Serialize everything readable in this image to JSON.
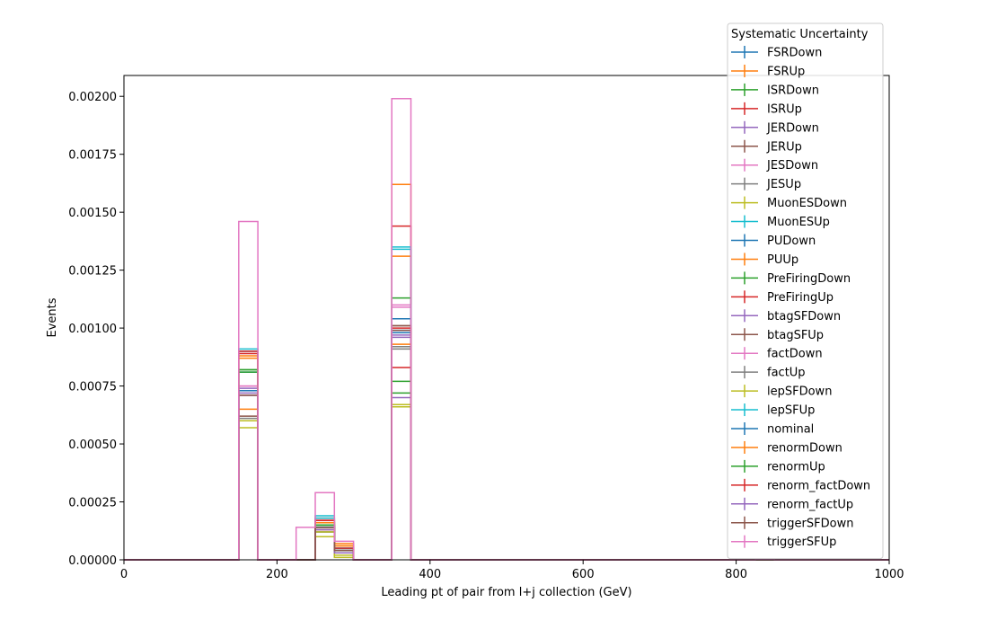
{
  "chart_data": {
    "type": "histogram-step",
    "xlabel": "Leading pt of pair from l+j collection (GeV)",
    "ylabel": "Events",
    "xlim": [
      0,
      1000
    ],
    "ylim": [
      0,
      0.00209
    ],
    "x_ticks": [
      0,
      200,
      400,
      600,
      800,
      1000
    ],
    "y_ticks": [
      0.0,
      0.00025,
      0.0005,
      0.00075,
      0.001,
      0.00125,
      0.0015,
      0.00175,
      0.002
    ],
    "y_tick_labels": [
      "0.00000",
      "0.00025",
      "0.00050",
      "0.00075",
      "0.00100",
      "0.00125",
      "0.00150",
      "0.00175",
      "0.00200"
    ],
    "bin_edges": [
      0,
      150,
      175,
      225,
      250,
      275,
      300,
      350,
      375,
      825,
      850,
      1000
    ],
    "grid": false,
    "legend_title": "Systematic Uncertainty",
    "legend_position": "top-right",
    "series": [
      {
        "name": "FSRDown",
        "color": "#1f77b4",
        "values": [
          0,
          0.00081,
          0,
          0,
          0.00015,
          5e-05,
          0,
          0.00104,
          0,
          0,
          0
        ]
      },
      {
        "name": "FSRUp",
        "color": "#ff7f0e",
        "values": [
          0,
          0.00088,
          0,
          0,
          0.00016,
          6e-05,
          0,
          0.00162,
          0,
          0,
          0
        ]
      },
      {
        "name": "ISRDown",
        "color": "#2ca02c",
        "values": [
          0,
          0.00082,
          0,
          0,
          0.00014,
          4e-05,
          0,
          0.00113,
          0,
          0,
          0
        ]
      },
      {
        "name": "ISRUp",
        "color": "#d62728",
        "values": [
          0,
          0.0009,
          0,
          0,
          0.00018,
          4e-05,
          0,
          0.00083,
          0,
          0,
          0
        ]
      },
      {
        "name": "JERDown",
        "color": "#9467bd",
        "values": [
          0,
          0.00072,
          0,
          0,
          0.00013,
          3e-05,
          0,
          0.0007,
          0,
          0,
          0
        ]
      },
      {
        "name": "JERUp",
        "color": "#8c564b",
        "values": [
          0,
          0.00071,
          0,
          0,
          0.00014,
          4e-05,
          0,
          0.00101,
          0,
          0,
          0
        ]
      },
      {
        "name": "JESDown",
        "color": "#e377c2",
        "values": [
          0,
          0.00075,
          0,
          0,
          0.00017,
          5e-05,
          0,
          0.00109,
          0,
          0,
          0
        ]
      },
      {
        "name": "JESUp",
        "color": "#7f7f7f",
        "values": [
          0,
          0.0006,
          0,
          0,
          0.00012,
          3e-05,
          0,
          0.00091,
          0,
          0,
          0
        ]
      },
      {
        "name": "MuonESDown",
        "color": "#bcbd22",
        "values": [
          0,
          0.00057,
          0,
          0,
          0.0001,
          1e-05,
          0,
          0.00066,
          0,
          0,
          0
        ]
      },
      {
        "name": "MuonESUp",
        "color": "#17becf",
        "values": [
          0,
          0.00091,
          0,
          0,
          0.00019,
          5e-05,
          0,
          0.00134,
          0,
          0,
          0
        ]
      },
      {
        "name": "PUDown",
        "color": "#1f77b4",
        "values": [
          0,
          0.00073,
          0,
          0,
          0.00015,
          4e-05,
          0,
          0.00099,
          0,
          0,
          0
        ]
      },
      {
        "name": "PUUp",
        "color": "#ff7f0e",
        "values": [
          0,
          0.00065,
          0,
          0,
          0.00013,
          6e-05,
          0,
          0.00131,
          0,
          0,
          0
        ]
      },
      {
        "name": "PreFiringDown",
        "color": "#2ca02c",
        "values": [
          0,
          0.00081,
          0,
          0,
          0.00015,
          3e-05,
          0,
          0.00077,
          0,
          0,
          0
        ]
      },
      {
        "name": "PreFiringUp",
        "color": "#d62728",
        "values": [
          0,
          0.00089,
          0,
          0,
          0.00017,
          4e-05,
          0,
          0.00144,
          0,
          0,
          0
        ]
      },
      {
        "name": "btagSFDown",
        "color": "#9467bd",
        "values": [
          0,
          0.00074,
          0,
          0,
          0.00014,
          4e-05,
          0,
          0.00096,
          0,
          0,
          0
        ]
      },
      {
        "name": "btagSFUp",
        "color": "#8c564b",
        "values": [
          0,
          0.00062,
          0,
          0,
          0.00016,
          3e-05,
          0,
          0.00099,
          0,
          0,
          0
        ]
      },
      {
        "name": "factDown",
        "color": "#e377c2",
        "values": [
          0,
          0.00075,
          0,
          0,
          0.00016,
          4e-05,
          0,
          0.0011,
          0,
          0,
          0
        ]
      },
      {
        "name": "factUp",
        "color": "#7f7f7f",
        "values": [
          0,
          0.00061,
          0,
          0,
          0.00012,
          4e-05,
          0,
          0.00092,
          0,
          0,
          0
        ]
      },
      {
        "name": "lepSFDown",
        "color": "#bcbd22",
        "values": [
          0,
          0.0006,
          0,
          0,
          0.00012,
          2e-05,
          0,
          0.00067,
          0,
          0,
          0
        ]
      },
      {
        "name": "lepSFUp",
        "color": "#17becf",
        "values": [
          0,
          0.0009,
          0,
          0,
          0.00018,
          5e-05,
          0,
          0.00135,
          0,
          0,
          0
        ]
      },
      {
        "name": "nominal",
        "color": "#1f77b4",
        "values": [
          0,
          0.00073,
          0,
          0,
          0.00014,
          4e-05,
          0,
          0.00098,
          0,
          0,
          0
        ]
      },
      {
        "name": "renormDown",
        "color": "#ff7f0e",
        "values": [
          0,
          0.00087,
          0,
          0,
          0.00016,
          7e-05,
          0,
          0.00093,
          0,
          0,
          0
        ]
      },
      {
        "name": "renormUp",
        "color": "#2ca02c",
        "values": [
          0,
          0.00082,
          0,
          0,
          0.00015,
          4e-05,
          0,
          0.00072,
          0,
          0,
          0
        ]
      },
      {
        "name": "renorm_factDown",
        "color": "#d62728",
        "values": [
          0,
          0.0009,
          0,
          0,
          0.00017,
          5e-05,
          0,
          0.001,
          0,
          0,
          0
        ]
      },
      {
        "name": "renorm_factUp",
        "color": "#9467bd",
        "values": [
          0,
          0.00071,
          0,
          0,
          0.00013,
          3e-05,
          0,
          0.00097,
          0,
          0,
          0
        ]
      },
      {
        "name": "triggerSFDown",
        "color": "#8c564b",
        "values": [
          0,
          0.00071,
          0,
          0,
          0.00014,
          4e-05,
          0,
          0.00101,
          0,
          0,
          0
        ]
      },
      {
        "name": "triggerSFUp",
        "color": "#e377c2",
        "values": [
          0,
          0.00146,
          0.0,
          0.00014,
          0.00029,
          8e-05,
          0,
          0.00199,
          0,
          5e-06,
          0
        ]
      }
    ]
  }
}
